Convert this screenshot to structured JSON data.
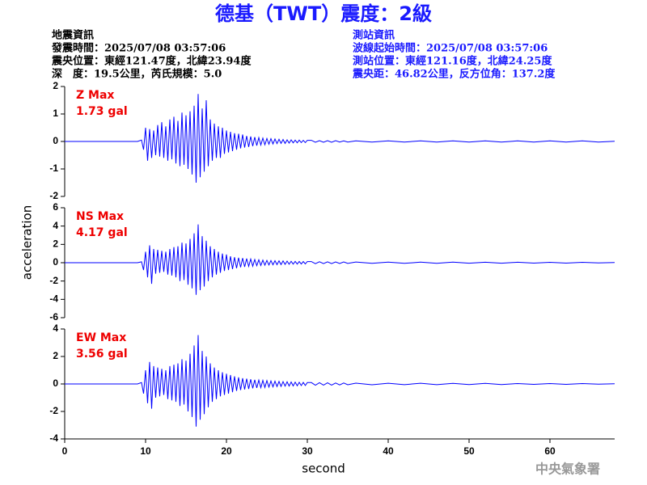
{
  "header": {
    "title": "德基（TWT）震度：2級",
    "left": [
      "地震資訊",
      "發震時間：2025/07/08 03:57:06",
      "震央位置：東經121.47度，北緯23.94度",
      "深　度：19.5公里，芮氏規模：5.0"
    ],
    "right": [
      "測站資訊",
      "波線起始時間：2025/07/08 03:57:06",
      "測站位置：東經121.16度，北緯24.25度",
      "震央距：46.82公里，反方位角：137.2度"
    ]
  },
  "footer": "中央氣象署",
  "chart_data": {
    "type": "line",
    "color": "#0000ff",
    "xlabel": "second",
    "ylabel": "acceleration",
    "xlim": [
      0,
      68
    ],
    "xticks": [
      0,
      10,
      20,
      30,
      40,
      50,
      60
    ],
    "x": [
      0,
      5,
      9,
      9.5,
      9.75,
      10,
      10.25,
      10.5,
      10.75,
      11,
      11.25,
      11.5,
      11.75,
      12,
      12.25,
      12.5,
      12.75,
      13,
      13.25,
      13.5,
      13.75,
      14,
      14.25,
      14.5,
      14.75,
      15,
      15.25,
      15.5,
      15.75,
      16,
      16.25,
      16.5,
      16.75,
      17,
      17.25,
      17.5,
      17.75,
      18,
      18.25,
      18.5,
      18.75,
      19,
      19.25,
      19.5,
      19.75,
      20,
      20.25,
      20.5,
      20.75,
      21,
      21.25,
      21.5,
      21.75,
      22,
      22.25,
      22.5,
      22.75,
      23,
      23.25,
      23.5,
      23.75,
      24,
      24.25,
      24.5,
      24.75,
      25,
      25.25,
      25.5,
      25.75,
      26,
      26.25,
      26.5,
      26.75,
      27,
      27.25,
      27.5,
      27.75,
      28,
      28.25,
      28.5,
      28.75,
      29,
      29.25,
      29.5,
      29.75,
      30,
      30.5,
      31,
      31.5,
      32,
      32.5,
      33,
      33.5,
      34,
      34.5,
      35,
      36,
      38,
      40,
      42,
      44,
      46,
      48,
      50,
      52,
      54,
      56,
      58,
      60,
      62,
      64,
      66,
      68
    ],
    "panels": [
      {
        "name": "Z Max",
        "annotation": "1.73 gal",
        "ylim": [
          -2,
          2
        ],
        "yticks": [
          -2,
          -1,
          0,
          1,
          2
        ],
        "values": [
          0,
          0,
          0,
          0.05,
          -0.3,
          0.5,
          -0.7,
          0.45,
          -0.6,
          0.4,
          -0.5,
          0.6,
          -0.55,
          0.7,
          -0.6,
          0.55,
          -0.7,
          0.8,
          -0.65,
          0.9,
          -0.8,
          0.75,
          -0.9,
          1.05,
          -0.85,
          0.95,
          -1.0,
          1.1,
          -1.2,
          1.3,
          -1.5,
          1.73,
          -1.3,
          1.2,
          -1.1,
          1.5,
          -0.9,
          0.8,
          -0.7,
          0.65,
          -0.6,
          0.55,
          -0.6,
          0.5,
          -0.45,
          0.4,
          -0.4,
          0.35,
          -0.35,
          0.3,
          -0.3,
          0.28,
          -0.25,
          0.25,
          -0.22,
          0.2,
          -0.2,
          0.18,
          -0.17,
          0.16,
          -0.15,
          0.14,
          -0.13,
          0.12,
          -0.12,
          0.11,
          -0.1,
          0.1,
          -0.09,
          0.09,
          -0.08,
          0.08,
          -0.07,
          0.07,
          -0.07,
          0.06,
          -0.06,
          0.06,
          -0.05,
          0.05,
          -0.05,
          0.05,
          -0.04,
          0.04,
          -0.04,
          0.04,
          0.04,
          -0.03,
          0.03,
          -0.03,
          0.03,
          -0.03,
          0.03,
          -0.02,
          0.02,
          -0.02,
          0.02,
          -0.02,
          0.02,
          -0.02,
          0.02,
          -0.02,
          0.02,
          -0.02,
          0.02,
          -0.02,
          0.02,
          -0.02,
          0.02,
          -0.02,
          0.02,
          -0.02,
          0.01
        ]
      },
      {
        "name": "NS Max",
        "annotation": "4.17 gal",
        "ylim": [
          -6,
          6
        ],
        "yticks": [
          -6,
          -4,
          -2,
          0,
          2,
          4,
          6
        ],
        "values": [
          0,
          0,
          0,
          0.1,
          -0.8,
          1.2,
          -1.6,
          1.9,
          -2.3,
          1.5,
          -1.2,
          1.4,
          -1.1,
          1.3,
          -1.0,
          1.2,
          -1.3,
          1.5,
          -1.4,
          1.7,
          -1.6,
          1.8,
          -2.0,
          2.2,
          -1.9,
          2.1,
          -2.4,
          2.6,
          -2.8,
          3.2,
          -3.5,
          4.17,
          -3.0,
          2.9,
          -2.6,
          2.4,
          -2.0,
          1.8,
          -1.6,
          1.5,
          -1.3,
          1.2,
          -1.1,
          1.0,
          -0.9,
          0.9,
          -0.8,
          0.7,
          -0.7,
          0.6,
          -0.6,
          0.55,
          -0.5,
          0.5,
          -0.45,
          0.45,
          -0.4,
          0.4,
          -0.38,
          0.35,
          -0.33,
          0.32,
          -0.3,
          0.28,
          -0.27,
          0.26,
          -0.25,
          0.24,
          -0.23,
          0.22,
          -0.21,
          0.2,
          -0.2,
          0.19,
          -0.18,
          0.18,
          -0.17,
          0.16,
          -0.16,
          0.15,
          -0.15,
          0.14,
          -0.14,
          0.13,
          -0.13,
          0.12,
          0.12,
          -0.11,
          0.11,
          -0.1,
          0.1,
          -0.1,
          0.09,
          -0.09,
          0.09,
          -0.08,
          0.08,
          -0.07,
          0.07,
          -0.07,
          0.06,
          -0.06,
          0.06,
          -0.05,
          0.05,
          -0.05,
          0.05,
          -0.04,
          0.04,
          -0.04,
          0.04,
          -0.03,
          0.03
        ]
      },
      {
        "name": "EW Max",
        "annotation": "3.56 gal",
        "ylim": [
          -4,
          4
        ],
        "yticks": [
          -4,
          -2,
          0,
          2,
          4
        ],
        "values": [
          0,
          0,
          0,
          0.1,
          -0.7,
          1.0,
          -1.4,
          1.6,
          -1.8,
          1.3,
          -1.0,
          1.2,
          -0.9,
          1.1,
          -0.8,
          1.0,
          -1.1,
          1.3,
          -1.2,
          1.4,
          -1.3,
          1.5,
          -1.6,
          1.8,
          -1.5,
          1.7,
          -2.0,
          2.2,
          -2.4,
          2.8,
          -3.1,
          3.56,
          -2.6,
          2.4,
          -2.2,
          2.0,
          -1.7,
          1.5,
          -1.3,
          1.2,
          -1.1,
          1.0,
          -0.9,
          0.85,
          -0.8,
          0.75,
          -0.7,
          0.65,
          -0.6,
          0.55,
          -0.5,
          0.48,
          -0.45,
          0.42,
          -0.4,
          0.38,
          -0.36,
          0.34,
          -0.32,
          0.3,
          -0.29,
          0.28,
          -0.27,
          0.26,
          -0.25,
          0.24,
          -0.23,
          0.22,
          -0.21,
          0.2,
          -0.19,
          0.18,
          -0.18,
          0.17,
          -0.16,
          0.16,
          -0.15,
          0.14,
          -0.14,
          0.13,
          -0.13,
          0.12,
          -0.12,
          0.11,
          -0.11,
          0.1,
          0.1,
          -0.09,
          0.09,
          -0.08,
          0.08,
          -0.08,
          0.07,
          -0.07,
          0.07,
          -0.06,
          0.06,
          -0.06,
          0.05,
          -0.05,
          0.05,
          -0.05,
          0.04,
          -0.04,
          0.04,
          -0.04,
          0.03,
          -0.03,
          0.03,
          -0.03,
          0.03,
          -0.02,
          0.02
        ]
      }
    ]
  }
}
